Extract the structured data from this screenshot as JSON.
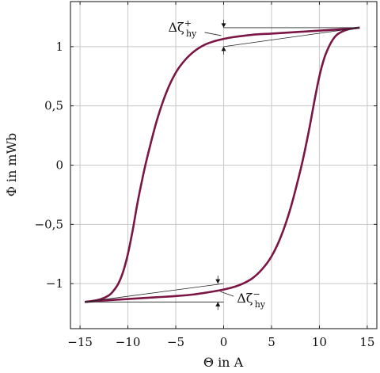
{
  "chart_data": {
    "type": "line",
    "title": "",
    "xlabel": "Θ in A",
    "ylabel": "Φ in mWb",
    "xlim": [
      -16,
      16
    ],
    "ylim": [
      -1.38,
      1.38
    ],
    "x_ticks": [
      -15,
      -10,
      -5,
      0,
      5,
      10,
      15
    ],
    "x_tick_labels": [
      "−15",
      "−10",
      "−5",
      "0",
      "5",
      "10",
      "15"
    ],
    "y_ticks": [
      -1,
      -0.5,
      0,
      0.5,
      1
    ],
    "y_tick_labels": [
      "−1",
      "−0,5",
      "0",
      "0,5",
      "1"
    ],
    "grid": true,
    "series": [
      {
        "branch": "descending",
        "color": "#7a1545",
        "x": [
          14.2,
          13.0,
          11.0,
          9.0,
          7.0,
          5.0,
          3.0,
          1.0,
          0.0,
          -1.0,
          -2.0,
          -3.0,
          -4.0,
          -5.0,
          -6.0,
          -7.0,
          -8.0,
          -8.5,
          -9.0,
          -9.5,
          -10.0,
          -10.5,
          -11.0,
          -11.5,
          -12.0,
          -13.0,
          -14.5
        ],
        "y": [
          1.16,
          1.15,
          1.14,
          1.13,
          1.12,
          1.11,
          1.1,
          1.08,
          1.065,
          1.045,
          1.015,
          0.965,
          0.89,
          0.78,
          0.61,
          0.37,
          0.06,
          -0.12,
          -0.32,
          -0.55,
          -0.75,
          -0.9,
          -1.0,
          -1.06,
          -1.1,
          -1.135,
          -1.155
        ]
      },
      {
        "branch": "ascending",
        "color": "#7a1545",
        "x": [
          -14.5,
          -13.0,
          -11.0,
          -9.0,
          -7.0,
          -5.0,
          -3.0,
          -1.0,
          0.0,
          1.0,
          2.0,
          3.0,
          4.0,
          5.0,
          6.0,
          7.0,
          8.0,
          8.5,
          9.0,
          9.5,
          10.0,
          10.5,
          11.0,
          11.5,
          12.0,
          13.0,
          14.2
        ],
        "y": [
          -1.155,
          -1.145,
          -1.135,
          -1.125,
          -1.115,
          -1.105,
          -1.09,
          -1.065,
          -1.05,
          -1.03,
          -1.0,
          -0.955,
          -0.88,
          -0.77,
          -0.6,
          -0.36,
          -0.05,
          0.13,
          0.33,
          0.55,
          0.75,
          0.9,
          1.0,
          1.07,
          1.11,
          1.145,
          1.16
        ]
      }
    ],
    "annotations": [
      {
        "label_main": "Δζ",
        "label_sup": "+",
        "label_sub": "hy",
        "upper_line": {
          "x": [
            0.0,
            14.2
          ],
          "y": [
            1.16,
            1.16
          ]
        },
        "lower_line": {
          "x": [
            0.0,
            14.2
          ],
          "y": [
            1.0,
            1.16
          ]
        },
        "marker_x": 0.0,
        "y_top": 1.16,
        "y_bottom": 1.0
      },
      {
        "label_main": "Δζ",
        "label_sup": "−",
        "label_sub": "hy",
        "upper_line": {
          "x": [
            -14.5,
            0.0
          ],
          "y": [
            -1.155,
            -1.0
          ]
        },
        "lower_line": {
          "x": [
            -14.5,
            0.0
          ],
          "y": [
            -1.155,
            -1.155
          ]
        },
        "marker_x": -0.6,
        "y_top": -1.0,
        "y_bottom": -1.155
      }
    ]
  }
}
